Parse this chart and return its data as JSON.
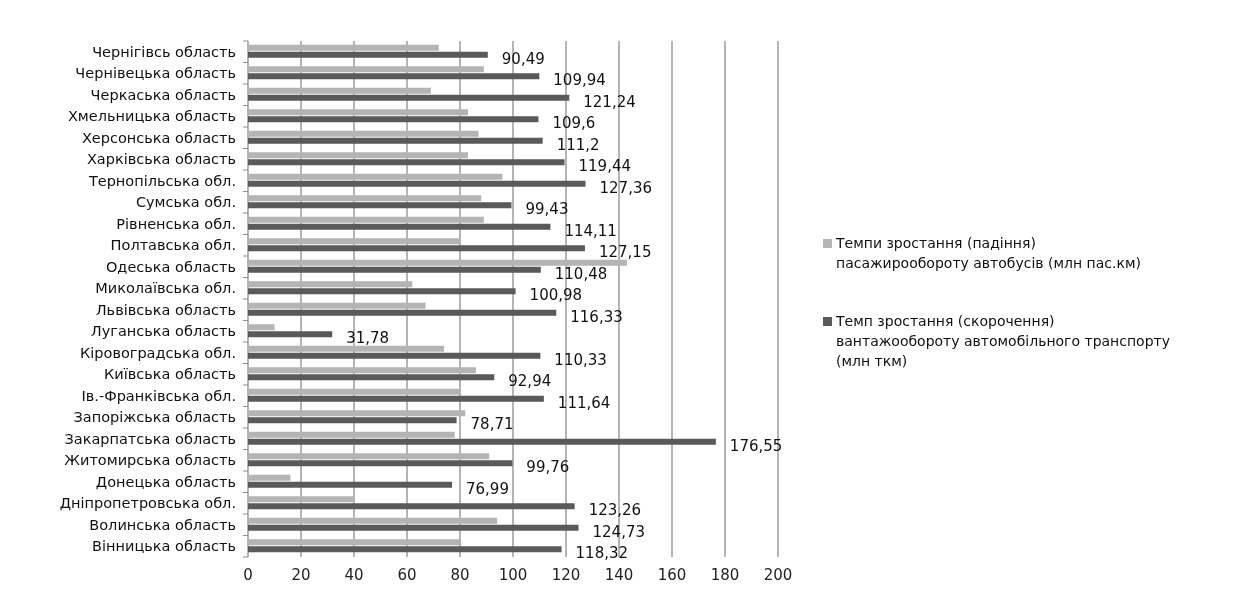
{
  "chart_data": {
    "type": "bar",
    "orientation": "horizontal",
    "categories": [
      "Чернігівсь область",
      "Чернівецька область",
      "Черкаська область",
      "Хмельницька область",
      "Херсонська область",
      "Харківська область",
      "Тернопільська обл.",
      "Сумська обл.",
      "Рівненська обл.",
      "Полтавська обл.",
      "Одеська область",
      "Миколаївська обл.",
      "Львівська область",
      "Луганська область",
      "Кіровоградська обл.",
      "Київська область",
      "Ів.-Франківська обл.",
      "Запоріжська область",
      "Закарпатська область",
      "Житомирська  область",
      "Донецька область",
      "Дніпропетровська обл.",
      "Волинська область",
      "Вінницька область"
    ],
    "series": [
      {
        "name": "Темпи зростання (падіння) пасажирообороту автобусів (млн пас.км)",
        "color": "#b4b4b4",
        "values": [
          72,
          89,
          69,
          83,
          87,
          83,
          96,
          88,
          89,
          80,
          143,
          62,
          67,
          10,
          74,
          86,
          80,
          82,
          78,
          91,
          16,
          40,
          94,
          80
        ]
      },
      {
        "name": "Темп зростання (скорочення) вантажообороту автомобільного транспорту (млн ткм)",
        "color": "#5a5a5a",
        "values": [
          90.49,
          109.94,
          121.24,
          109.6,
          111.2,
          119.44,
          127.36,
          99.43,
          114.11,
          127.15,
          110.48,
          100.98,
          116.33,
          31.78,
          110.33,
          92.94,
          111.64,
          78.71,
          176.55,
          99.76,
          76.99,
          123.26,
          124.73,
          118.32
        ],
        "value_labels": [
          "90,49",
          "109,94",
          "121,24",
          "109,6",
          "111,2",
          "119,44",
          "127,36",
          "99,43",
          "114,11",
          "127,15",
          "110,48",
          "100,98",
          "116,33",
          "31,78",
          "110,33",
          "92,94",
          "111,64",
          "78,71",
          "176,55",
          "99,76",
          "76,99",
          "123,26",
          "124,73",
          "118,32"
        ]
      }
    ],
    "xlim": [
      0,
      200
    ],
    "xticks": [
      0,
      20,
      40,
      60,
      80,
      100,
      120,
      140,
      160,
      180,
      200
    ],
    "grid": "x",
    "legend": "right"
  }
}
